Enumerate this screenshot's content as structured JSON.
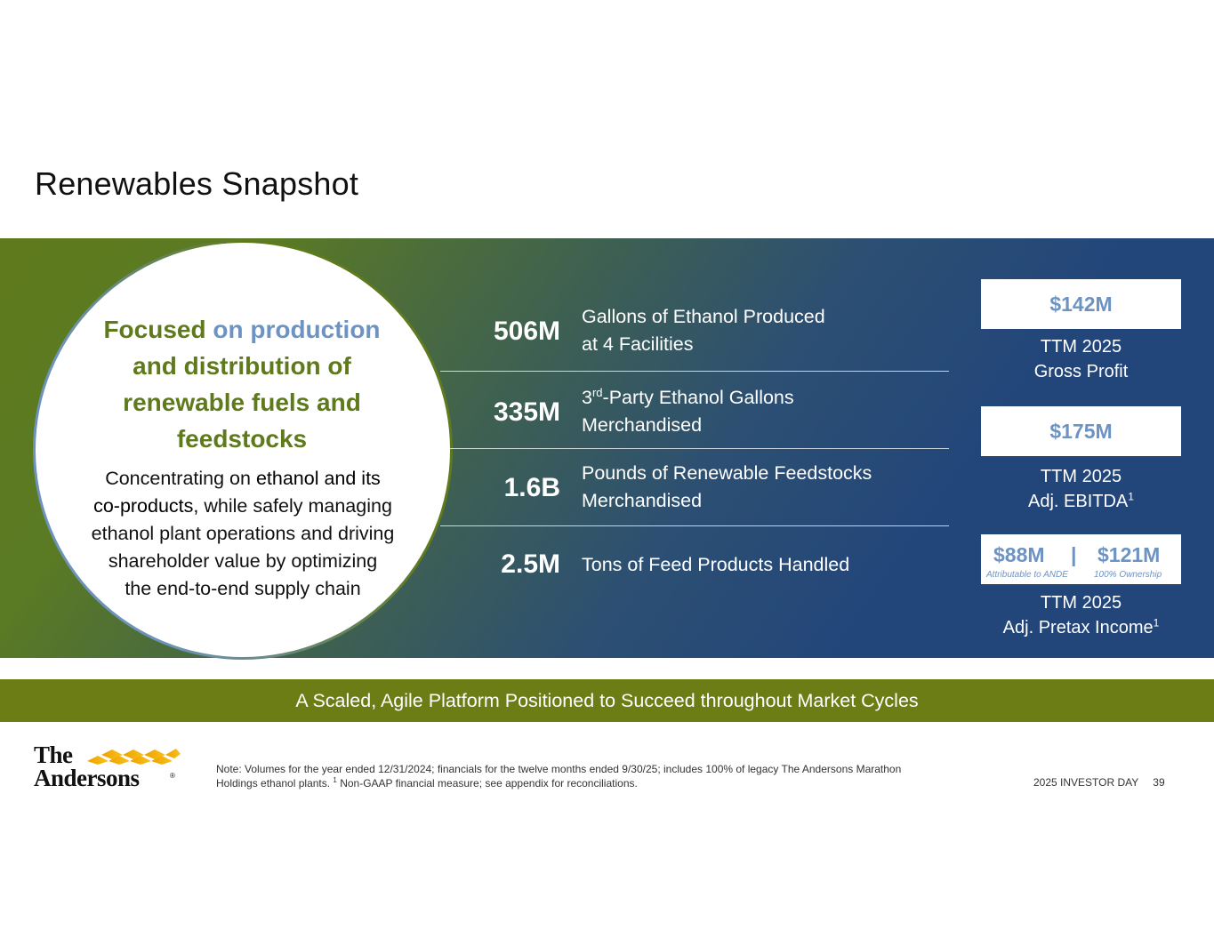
{
  "title": "Renewables Snapshot",
  "circle": {
    "headline": {
      "part1": "Focused",
      "part2": " on production",
      "part3": "and distribution of",
      "part4": "renewable fuels and",
      "part5": "feedstocks"
    },
    "body": {
      "line1_a": "Concentrating on ",
      "line1_b": "ethanol and its",
      "line2_a": "co-products,",
      "line2_b": " while safely managing",
      "line3": "ethanol plant operations and driving",
      "line4": "shareholder value by optimizing",
      "line5": "the end-to-end supply chain"
    }
  },
  "metrics": [
    {
      "value": "506M",
      "line1": "Gallons of Ethanol Produced",
      "line2": "at 4 Facilities"
    },
    {
      "value": "335M",
      "line1_pre": "3",
      "line1_sup": "rd",
      "line1_post": "-Party Ethanol Gallons",
      "line2": "Merchandised"
    },
    {
      "value": "1.6B",
      "line1": "Pounds of Renewable Feedstocks",
      "line2": "Merchandised"
    },
    {
      "value": "2.5M",
      "line1": "Tons of Feed Products Handled"
    }
  ],
  "kpis": {
    "gross_profit": {
      "value": "$142M",
      "line1": "TTM 2025",
      "line2": "Gross Profit"
    },
    "ebitda": {
      "value": "$175M",
      "line1": "TTM 2025",
      "line2": "Adj. EBITDA",
      "sup": "1"
    },
    "pretax": {
      "value_left": "$88M",
      "separator": "|",
      "value_right": "$121M",
      "caption_left": "Attributable to ANDE",
      "caption_right": "100% Ownership",
      "line1": "TTM 2025",
      "line2": "Adj. Pretax Income",
      "sup": "1"
    }
  },
  "banner": "A Scaled, Agile Platform Positioned to Succeed throughout Market Cycles",
  "logo": {
    "line1": "The",
    "line2": "Andersons",
    "reg": "®"
  },
  "note": {
    "part1": "Note: Volumes for the year ended 12/31/2024; financials for the twelve months ended 9/30/25; includes 100% of legacy The Andersons Marathon Holdings ethanol plants. ",
    "sup": "1",
    "part2": " Non-GAAP financial measure; see appendix for reconciliations."
  },
  "footer": {
    "event": "2025 INVESTOR DAY",
    "page": "39"
  },
  "colors": {
    "green": "#5f7a1c",
    "blue": "#6d93c2",
    "navy": "#23467a",
    "banner": "#6b7d14"
  }
}
